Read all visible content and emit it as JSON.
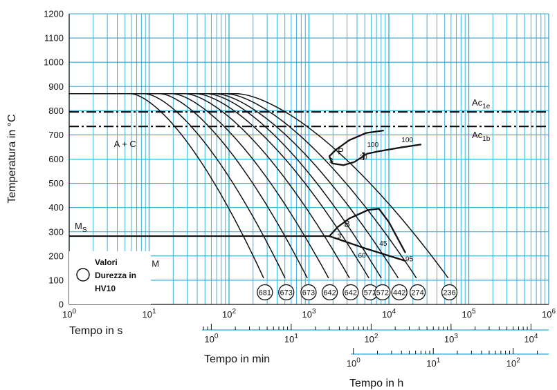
{
  "chart_data": {
    "type": "line",
    "ylabel": "Temperatura in °C",
    "xlabel_seconds": "Tempo in s",
    "xlabel_minutes": "Tempo in min",
    "xlabel_hours": "Tempo in h",
    "x_scale": "log",
    "xlim_seconds": [
      1,
      1000000
    ],
    "ylim": [
      0,
      1200
    ],
    "yticks": [
      "0",
      "100",
      "200",
      "300",
      "400",
      "500",
      "600",
      "700",
      "800",
      "900",
      "1000",
      "1100",
      "1200"
    ],
    "xticks_seconds": [
      {
        "b": "10",
        "e": "0"
      },
      {
        "b": "10",
        "e": "1"
      },
      {
        "b": "10",
        "e": "2"
      },
      {
        "b": "10",
        "e": "3"
      },
      {
        "b": "10",
        "e": "4"
      },
      {
        "b": "10",
        "e": "5"
      },
      {
        "b": "10",
        "e": "6"
      }
    ],
    "xticks_minutes": [
      {
        "b": "10",
        "e": "0"
      },
      {
        "b": "10",
        "e": "1"
      },
      {
        "b": "10",
        "e": "2"
      },
      {
        "b": "10",
        "e": "3"
      },
      {
        "b": "10",
        "e": "4"
      }
    ],
    "xticks_hours": [
      {
        "b": "10",
        "e": "0"
      },
      {
        "b": "10",
        "e": "1"
      },
      {
        "b": "10",
        "e": "2"
      }
    ],
    "reference_lines": [
      {
        "label_main": "Ac",
        "label_sub": "1e",
        "temperature": 795
      },
      {
        "label_main": "Ac",
        "label_sub": "1b",
        "temperature": 735
      }
    ],
    "ms_line": {
      "label_main": "M",
      "label_sub": "S",
      "temperature": 282
    },
    "region_labels": [
      {
        "text": "A + C",
        "t": 5,
        "temp": 650
      },
      {
        "text": "P",
        "t": 2500,
        "temp": 620
      },
      {
        "text": "B",
        "t": 3000,
        "temp": 320
      },
      {
        "text": "M",
        "t": 12,
        "temp": 155
      }
    ],
    "transformation_percent_labels": [
      {
        "text": "3",
        "t": 1900,
        "temp": 585
      },
      {
        "text": "20",
        "t": 4800,
        "temp": 598
      },
      {
        "text": "100",
        "t": 6300,
        "temp": 650
      },
      {
        "text": "100",
        "t": 17000,
        "temp": 670
      },
      {
        "text": "3",
        "t": 2400,
        "temp": 272
      },
      {
        "text": "45",
        "t": 8500,
        "temp": 242
      },
      {
        "text": "60",
        "t": 4600,
        "temp": 192
      },
      {
        "text": "95",
        "t": 18000,
        "temp": 178
      }
    ],
    "hardness_hv10": [
      "681",
      "673",
      "673",
      "642",
      "642",
      "572",
      "572",
      "442",
      "274",
      "236"
    ],
    "legend": {
      "line1": "Valori",
      "line2": "Durezza in",
      "line3": "HV10"
    }
  }
}
